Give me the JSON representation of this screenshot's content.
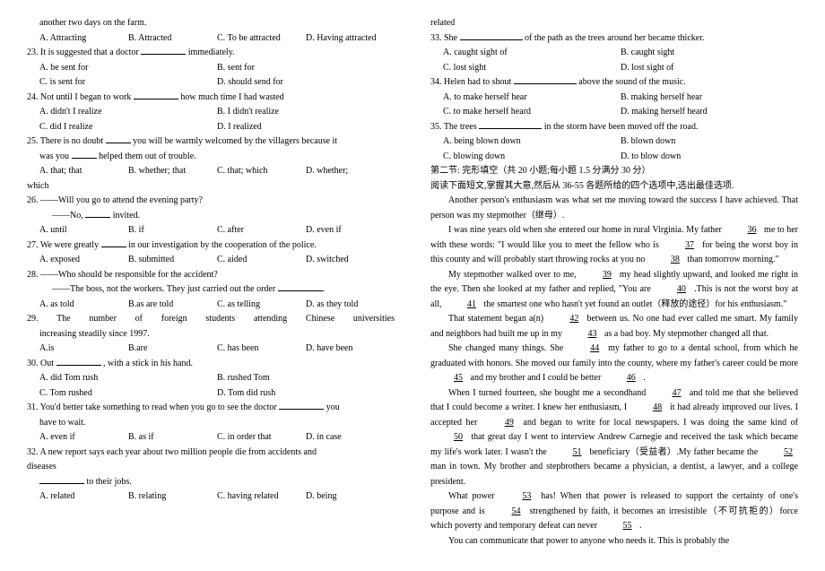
{
  "left": {
    "q22_stem2": "another two days on the farm.",
    "q22_opts": [
      "A. Attracting",
      "B. Attracted",
      "C. To be attracted",
      "D. Having attracted"
    ],
    "q23_stem": "23. It is suggested that a doctor ",
    "q23_stem2": " immediately.",
    "q23_opts": [
      "A. be sent for",
      "B. sent for",
      "C. is sent for",
      "D. should send for"
    ],
    "q24_stem": "24. Not until I began to work ",
    "q24_stem2": " how much time I had wasted",
    "q24_opts": [
      "A. didn't I realize",
      "B. I didn't realize",
      "C. did I realize",
      "D. I realized"
    ],
    "q25_stem1": "25. There is no doubt ",
    "q25_stem2": " you will be warmly welcomed by the villagers because it",
    "q25_line2a": "was you ",
    "q25_line2b": " helped them out of trouble.",
    "q25_opts": [
      "A. that; that",
      "B. whether; that",
      "C. that; which",
      "D. whether;"
    ],
    "q25_last": "which",
    "q26_stem": "26. ——Will you go to attend the evening party?",
    "q26_line2a": "——No, ",
    "q26_line2b": " invited.",
    "q26_opts": [
      "A. until",
      "B. if",
      "C. after",
      "D. even if"
    ],
    "q27_stem": "27. We were greatly ",
    "q27_stem2": " in our investigation by the cooperation of the police.",
    "q27_opts": [
      "A. exposed",
      "B. submitted",
      "C. aided",
      "D. switched"
    ],
    "q28_stem": "28. ——Who should be responsible for the accident?",
    "q28_line2": "——The boss, not the workers. They just carried out the order ",
    "q28_line2b": ".",
    "q28_opts": [
      "A. as told",
      "B.as are told",
      "C. as telling",
      "D. as they told"
    ],
    "q29_stem": "29. The number of foreign students attending Chinese universities",
    "q29_line2": "increasing steadily since 1997.",
    "q29_opts": [
      "A.is",
      "B.are",
      "C. has been",
      "D. have been"
    ],
    "q30_stem": "30. Out ",
    "q30_stem2": " , with a stick in his hand.",
    "q30_opts": [
      "A. did Tom rush",
      "B. rushed Tom",
      "C. Tom rushed",
      "D. Tom did rush"
    ],
    "q31_stem": "31. You'd better take something to read when you go to see the doctor ",
    "q31_stem2": " you",
    "q31_line2": "have to wait.",
    "q31_opts": [
      "A. even if",
      "B. as if",
      "C. in order that",
      "D. in case"
    ],
    "q32_stem": "32. A new report says each year about two million people die from accidents and",
    "q32_line2": "diseases",
    "q32_line3": " to their jobs.",
    "q32_opts": [
      "A. related",
      "B. relating",
      "C.  having related",
      "D.  being"
    ]
  },
  "right": {
    "q32_last": "related",
    "q33_stem": "33. She ",
    "q33_stem2": " of the path as the trees around her became thicker.",
    "q33_opts": [
      "A. caught sight of",
      "B. caught sight",
      "C. lost sight",
      "D. lost sight of"
    ],
    "q34_stem": "34. Helen had to shout ",
    "q34_stem2": " above the sound of the music.",
    "q34_opts": [
      "A. to make herself hear",
      "B. making herself hear",
      "C. to make herself heard",
      "D. making herself heard"
    ],
    "q35_stem": "35. The trees ",
    "q35_stem2": " in the storm have been moved off the road.",
    "q35_opts": [
      "A. being blown down",
      "B. blown down",
      "C. blowing down",
      "D. to blow down"
    ],
    "section2": "第二节: 完形填空（共 20 小题;每小题 1.5 分满分 30 分）",
    "instr": "阅读下面短文,掌握其大意,然后从 36-55 各题所给的四个选项中,选出最佳选项.",
    "p1": "Another person's enthusiasm was what set me moving toward the success I have achieved. That person was my stepmother（继母）.",
    "p2a": "I was nine years old when she entered our home in rural Virginia. My father ",
    "n36": "36",
    "p2b": " me to her with these words: \"I would like you to meet the fellow who is ",
    "n37": "37",
    "p2c": " for being the worst boy in this county and will probably start throwing rocks at you no ",
    "n38": "38",
    "p2d": " than tomorrow morning.\"",
    "p3a": "My stepmother walked over to me, ",
    "n39": "39",
    "p3b": " my head slightly upward, and looked me right in the eye. Then she looked at my father and replied, \"You are ",
    "n40": "40",
    "p3c": " .This is not the worst boy at all, ",
    "n41": "41",
    "p3d": " the smartest one who hasn't yet found an outlet（释放的途径）for his enthusiasm.\"",
    "p4a": "That statement began a(n) ",
    "n42": "42",
    "p4b": " between us. No one had ever called me smart. My family and neighbors had built me up in my ",
    "n43": "43",
    "p4c": " as a bad boy. My stepmother changed all that.",
    "p5a": "She changed many things. She ",
    "n44": "44",
    "p5b": " my father to go to a dental school, from which he graduated with honors. She moved our family into the county, where my father's career could be more ",
    "n45": "45",
    "p5c": " and my brother and I could be better ",
    "n46": "46",
    "p5d": " .",
    "p6a": "When I turned fourteen, she bought me a secondhand ",
    "n47": "47",
    "p6b": " and told me that she believed that I could become a writer. I knew her enthusiasm, I ",
    "n48": "48",
    "p6c": " it had already improved our lives. I accepted her ",
    "n49": "49",
    "p6d": " and began to write for local newspapers. I was doing the same kind of ",
    "n50": "50",
    "p6e": " that great day I went to interview Andrew Carnegie and received the task which became my life's work later. I wasn't the ",
    "n51": "51",
    "p6f": " beneficiary（受益者）.My father became the ",
    "n52": "52",
    "p6g": " man in town. My brother and stepbrothers became a physician, a dentist, a lawyer, and a college president.",
    "p7a": "What power ",
    "n53": "53",
    "p7b": " has! When that power is released to support the certainty of one's purpose and is ",
    "n54": "54",
    "p7c": " strengthened by faith, it becomes an irresistible（不可抗拒的）force which poverty and temporary defeat can never ",
    "n55": "55",
    "p7d": " .",
    "p8": "You can communicate that power to anyone who needs it. This is probably the"
  }
}
